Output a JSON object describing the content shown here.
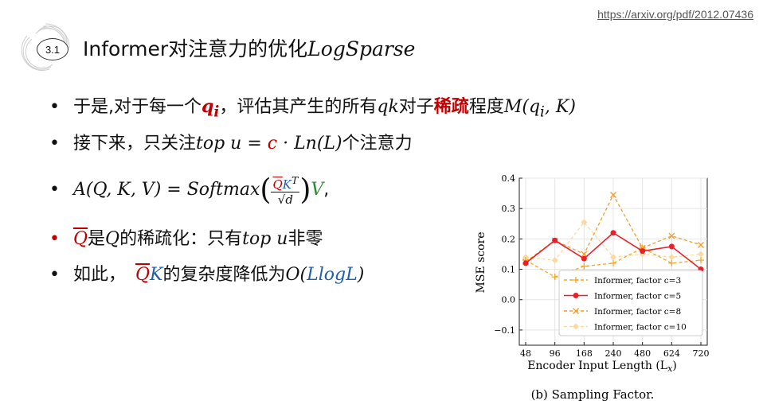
{
  "header": {
    "url": "https://arxiv.org/pdf/2012.07436",
    "section_number": "3.1",
    "title_text": "Informer对注意力的优化",
    "title_math": "LogSparse"
  },
  "bullets": {
    "b1": {
      "t1": "于是,对于每一个",
      "q": "q",
      "qsub": "i",
      "t2": "，评估其产生的所有",
      "qk": "qk",
      "t3": "对子",
      "sparse": "稀疏",
      "t4": "程度",
      "m": "M(q",
      "msub": "i",
      "m2": ", K)"
    },
    "b2": {
      "t1": "接下来，只关注",
      "m1": "top u = ",
      "c": "c",
      "m2": " · Ln(L)",
      "t2": "个注意力"
    },
    "b3": {
      "a": "A(Q, K, V) = Softmax",
      "qbar": "Q",
      "k": "K",
      "kt": "T",
      "sqrt": "√d",
      "v": "V",
      "comma": ","
    },
    "b4": {
      "qbar": "Q",
      "t1": "是",
      "q": "Q",
      "t2": "的稀疏化：只有",
      "m": "top u",
      "t3": "非零"
    },
    "b5": {
      "t1": "如此，",
      "qbar": "Q",
      "k": "K",
      "t2": "的复杂度降低为",
      "o": "O(",
      "l": "LlogL",
      "close": ")"
    }
  },
  "chart_data": {
    "type": "line",
    "categories": [
      "48",
      "96",
      "168",
      "240",
      "480",
      "624",
      "720"
    ],
    "ylabel": "MSE score",
    "xlabel": "Encoder Input Length (L",
    "xlabel_sub": "x",
    "xlabel_close": ")",
    "caption": "(b) Sampling Factor.",
    "ylim": [
      -0.15,
      0.4
    ],
    "yticks": [
      "0.4",
      "0.3",
      "0.2",
      "0.1",
      "0.0",
      "−0.1"
    ],
    "ytick_values": [
      0.4,
      0.3,
      0.2,
      0.1,
      0.0,
      -0.1
    ],
    "series": [
      {
        "name": "Informer, factor c=3",
        "values": [
          0.13,
          0.075,
          0.11,
          0.12,
          0.17,
          0.12,
          0.13
        ],
        "color": "#f5a623",
        "marker": "plus"
      },
      {
        "name": "Informer, factor c=5",
        "values": [
          0.12,
          0.195,
          0.135,
          0.22,
          0.16,
          0.175,
          0.1
        ],
        "color": "#e8202a",
        "marker": "dot"
      },
      {
        "name": "Informer, factor c=8",
        "values": [
          0.125,
          0.195,
          0.15,
          0.345,
          0.17,
          0.21,
          0.18
        ],
        "color": "#f39c2c",
        "marker": "x"
      },
      {
        "name": "Informer, factor c=10",
        "values": [
          0.14,
          0.13,
          0.255,
          0.14,
          0.15,
          0.14,
          0.15
        ],
        "color": "#fdd9a0",
        "marker": "diamond"
      }
    ]
  }
}
